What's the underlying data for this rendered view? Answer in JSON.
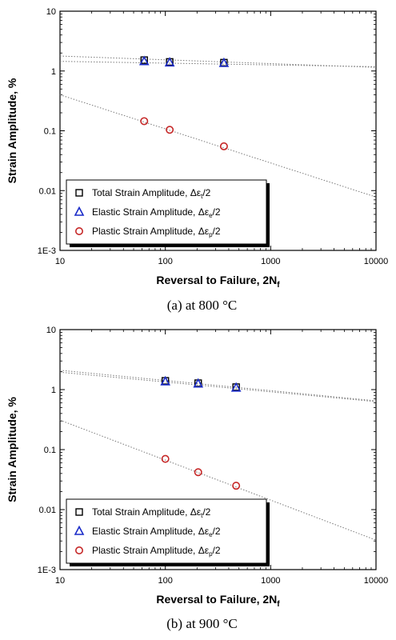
{
  "chart_data": [
    {
      "type": "scatter",
      "caption": "(a) at 800 °C",
      "xlabel": "Reversal to Failure, 2N",
      "xlabel_sub": "f",
      "ylabel": "Strain Amplitude, %",
      "x_scale": "log",
      "y_scale": "log",
      "xlim": [
        10,
        10000
      ],
      "ylim": [
        0.001,
        10
      ],
      "x_ticks": [
        "10",
        "100",
        "1000",
        "10000"
      ],
      "y_ticks": [
        "1E-3",
        "0.01",
        "0.1",
        "1",
        "10"
      ],
      "grid": false,
      "legend_position": "bottom-left",
      "series": [
        {
          "name": "Total Strain Amplitude, Δε",
          "name_sub": "t",
          "name_suffix": "/2",
          "marker": "square",
          "color": "#000000",
          "x": [
            63,
            110,
            360
          ],
          "y": [
            1.52,
            1.42,
            1.38
          ],
          "fit": {
            "x": [
              10,
              10000
            ],
            "y": [
              1.78,
              1.15
            ]
          }
        },
        {
          "name": "Elastic Strain Amplitude, Δε",
          "name_sub": "e",
          "name_suffix": "/2",
          "marker": "triangle",
          "color": "#1a2bc8",
          "x": [
            63,
            110,
            360
          ],
          "y": [
            1.45,
            1.38,
            1.35
          ],
          "fit": {
            "x": [
              10,
              10000
            ],
            "y": [
              1.45,
              1.18
            ]
          }
        },
        {
          "name": "Plastic Strain Amplitude, Δε",
          "name_sub": "p",
          "name_suffix": "/2",
          "marker": "circle",
          "color": "#c62828",
          "x": [
            63,
            110,
            360
          ],
          "y": [
            0.145,
            0.104,
            0.055
          ],
          "fit": {
            "x": [
              10,
              10000
            ],
            "y": [
              0.4,
              0.0078
            ]
          }
        }
      ]
    },
    {
      "type": "scatter",
      "caption": "(b) at 900 °C",
      "xlabel": "Reversal to Failure, 2N",
      "xlabel_sub": "f",
      "ylabel": "Strain Amplitude, %",
      "x_scale": "log",
      "y_scale": "log",
      "xlim": [
        10,
        10000
      ],
      "ylim": [
        0.001,
        10
      ],
      "x_ticks": [
        "10",
        "100",
        "1000",
        "10000"
      ],
      "y_ticks": [
        "1E-3",
        "0.01",
        "0.1",
        "1",
        "10"
      ],
      "grid": false,
      "legend_position": "bottom-left",
      "series": [
        {
          "name": "Total Strain Amplitude, Δε",
          "name_sub": "t",
          "name_suffix": "/2",
          "marker": "square",
          "color": "#000000",
          "x": [
            100,
            205,
            470
          ],
          "y": [
            1.4,
            1.28,
            1.1
          ],
          "fit": {
            "x": [
              10,
              10000
            ],
            "y": [
              2.1,
              0.65
            ]
          }
        },
        {
          "name": "Elastic Strain Amplitude, Δε",
          "name_sub": "e",
          "name_suffix": "/2",
          "marker": "triangle",
          "color": "#1a2bc8",
          "x": [
            100,
            205,
            470
          ],
          "y": [
            1.36,
            1.25,
            1.07
          ],
          "fit": {
            "x": [
              10,
              10000
            ],
            "y": [
              1.95,
              0.63
            ]
          }
        },
        {
          "name": "Plastic Strain Amplitude, Δε",
          "name_sub": "p",
          "name_suffix": "/2",
          "marker": "circle",
          "color": "#c62828",
          "x": [
            100,
            205,
            470
          ],
          "y": [
            0.07,
            0.042,
            0.025
          ],
          "fit": {
            "x": [
              10,
              10000
            ],
            "y": [
              0.31,
              0.0031
            ]
          }
        }
      ]
    }
  ]
}
